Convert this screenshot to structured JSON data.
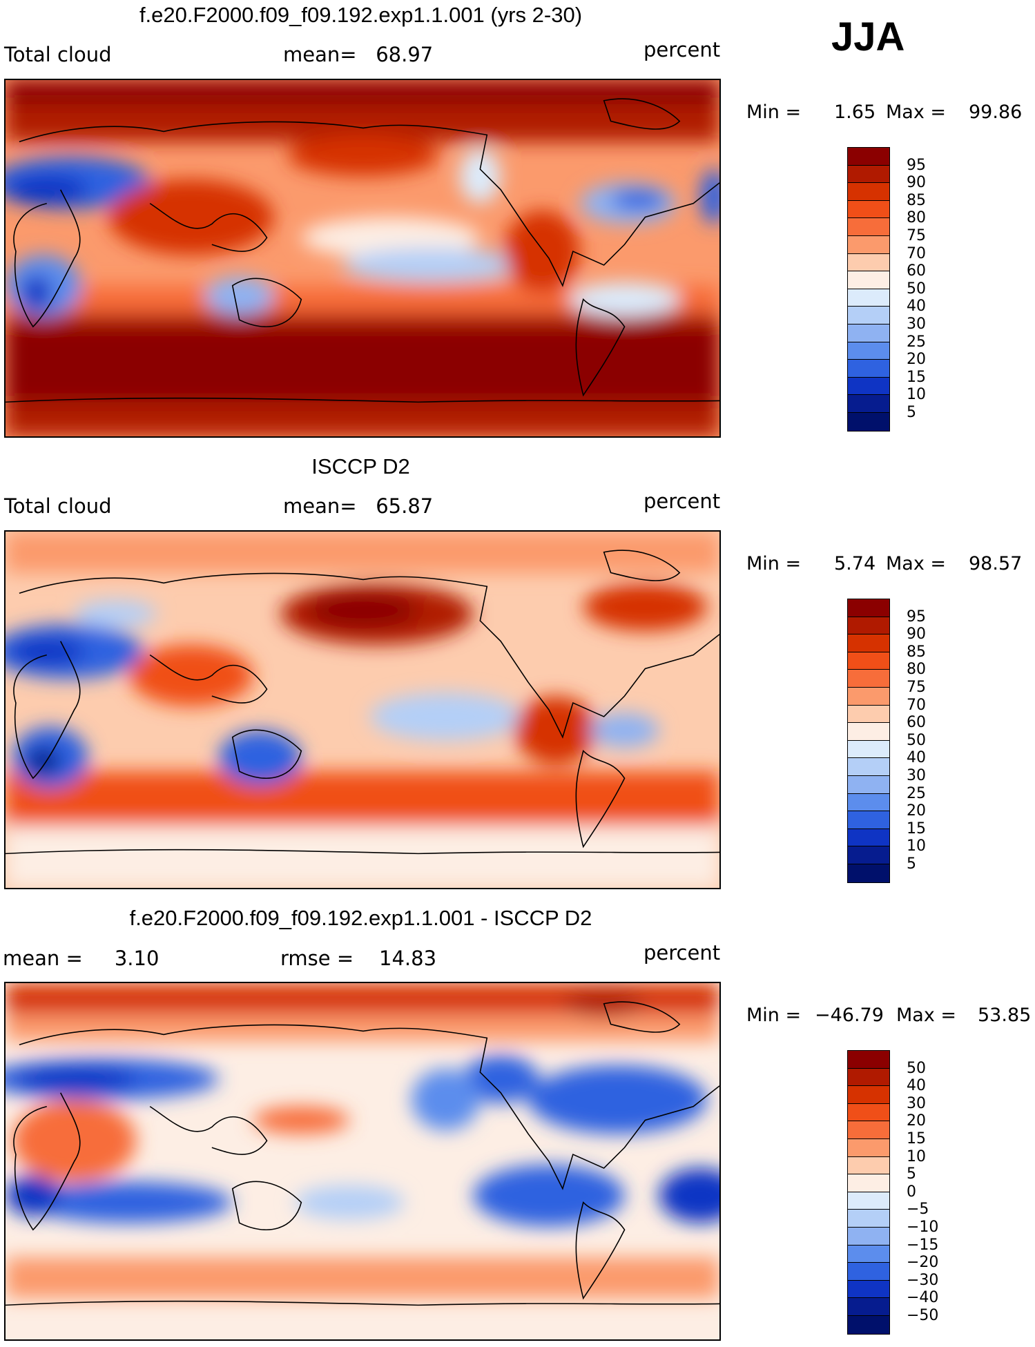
{
  "season": "JJA",
  "panels": [
    {
      "title": "f.e20.F2000.f09_f09.192.exp1.1.001 (yrs 2-30)",
      "left_label": "Total cloud",
      "center_label": "mean=   68.97",
      "units": "percent",
      "min_label": "Min =",
      "min_value": "1.65",
      "max_label": "Max =",
      "max_value": "99.86",
      "colorbar_labels": [
        "95",
        "90",
        "85",
        "80",
        "75",
        "70",
        "60",
        "50",
        "40",
        "30",
        "25",
        "20",
        "15",
        "10",
        "5"
      ]
    },
    {
      "title": "ISCCP D2",
      "left_label": "Total cloud",
      "center_label": "mean=   65.87",
      "units": "percent",
      "min_label": "Min =",
      "min_value": "5.74",
      "max_label": "Max =",
      "max_value": "98.57",
      "colorbar_labels": [
        "95",
        "90",
        "85",
        "80",
        "75",
        "70",
        "60",
        "50",
        "40",
        "30",
        "25",
        "20",
        "15",
        "10",
        "5"
      ]
    },
    {
      "title": "f.e20.F2000.f09_f09.192.exp1.1.001 - ISCCP D2",
      "left_label": "mean =     3.10",
      "center_label": "rmse =    14.83",
      "units": "percent",
      "min_label": "Min =",
      "min_value": "−46.79",
      "max_label": "Max =",
      "max_value": "53.85",
      "colorbar_labels": [
        "50",
        "40",
        "30",
        "20",
        "15",
        "10",
        "5",
        "0",
        "−5",
        "−10",
        "−15",
        "−20",
        "−30",
        "−40",
        "−50"
      ]
    }
  ],
  "palette": [
    "#8b0000",
    "#b01a00",
    "#d63200",
    "#f04f18",
    "#f76d3a",
    "#fb9a6c",
    "#fdccae",
    "#fdeee4",
    "#dcebfb",
    "#b4cff7",
    "#8fb2f2",
    "#5c8ded",
    "#2f62e0",
    "#0f34c4",
    "#061c8f",
    "#00106b"
  ],
  "colormap_name": "blue-white-red diverging"
}
